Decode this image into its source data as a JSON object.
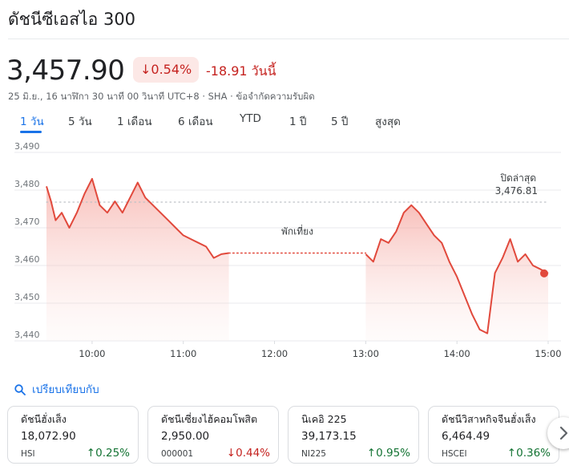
{
  "header": {
    "title": "ดัชนีซีเอสไอ 300",
    "price": "3,457.90",
    "change_pct": "0.54%",
    "change_abs": "-18.91 วันนี้",
    "meta": "25 มิ.ย., 16 นาฬิกา 30 นาที 00 วินาที UTC+8 · SHA · ข้อจำกัดความรับผิด"
  },
  "tabs": [
    "1 วัน",
    "5 วัน",
    "1 เดือน",
    "6 เดือน",
    "YTD",
    "1 ปี",
    "5 ปี",
    "สูงสุด"
  ],
  "active_tab": "1 วัน",
  "colors": {
    "down": "#c5221f",
    "up": "#137333",
    "accent": "#1a73e8",
    "line": "#e1493c"
  },
  "chart_data": {
    "type": "area",
    "y_ticks": [
      "3,490",
      "3,480",
      "3,470",
      "3,460",
      "3,450",
      "3,440"
    ],
    "x_ticks": [
      "10:00",
      "11:00",
      "12:00",
      "13:00",
      "14:00",
      "15:00"
    ],
    "ylim": [
      3440,
      3490
    ],
    "xlim": [
      "09:30",
      "15:00"
    ],
    "prev_close_label": "ปิดล่าสุด",
    "prev_close_value_text": "3,476.81",
    "prev_close": 3476.81,
    "break_label": "พักเที่ยง",
    "break_level": 3463.3,
    "grid": true,
    "series": [
      {
        "sessions": [
          {
            "x": [
              "09:30",
              "09:33",
              "09:36",
              "09:40",
              "09:45",
              "09:50",
              "09:55",
              "10:00",
              "10:05",
              "10:10",
              "10:15",
              "10:20",
              "10:25",
              "10:30",
              "10:35",
              "10:40",
              "10:45",
              "10:50",
              "10:55",
              "11:00",
              "11:05",
              "11:10",
              "11:15",
              "11:20",
              "11:25",
              "11:30"
            ],
            "y": [
              3481,
              3477,
              3472,
              3474,
              3470,
              3474,
              3479,
              3483,
              3476,
              3474,
              3477,
              3474,
              3478,
              3482,
              3478,
              3476,
              3474,
              3472,
              3470,
              3468,
              3467,
              3466,
              3465,
              3462,
              3463,
              3463.3
            ]
          },
          {
            "x": [
              "13:00",
              "13:05",
              "13:10",
              "13:15",
              "13:20",
              "13:25",
              "13:30",
              "13:35",
              "13:40",
              "13:45",
              "13:50",
              "13:55",
              "14:00",
              "14:05",
              "14:10",
              "14:15",
              "14:20",
              "14:25",
              "14:30",
              "14:35",
              "14:40",
              "14:45",
              "14:50",
              "14:55",
              "15:00"
            ],
            "y": [
              3463,
              3461,
              3467,
              3466,
              3469,
              3474,
              3476,
              3474,
              3471,
              3468,
              3466,
              3461,
              3457,
              3452,
              3447,
              3443,
              3442,
              3458,
              3462,
              3467,
              3461,
              3463,
              3460,
              3459,
              3457.9
            ]
          }
        ]
      }
    ]
  },
  "compare": {
    "label": "เปรียบเทียบกับ"
  },
  "cards": [
    {
      "name": "ดัชนีฮั่งเส็ง",
      "value": "18,072.90",
      "ticker": "HSI",
      "pct": "0.25%",
      "dir": "up"
    },
    {
      "name": "ดัชนีเซี่ยงไฮ้คอมโพสิต",
      "value": "2,950.00",
      "ticker": "000001",
      "pct": "0.44%",
      "dir": "down"
    },
    {
      "name": "นิเคอิ 225",
      "value": "39,173.15",
      "ticker": "NI225",
      "pct": "0.95%",
      "dir": "up"
    },
    {
      "name": "ดัชนีวิสาหกิจจีนฮั่งเส็ง",
      "value": "6,464.49",
      "ticker": "HSCEI",
      "pct": "0.36%",
      "dir": "up"
    }
  ]
}
